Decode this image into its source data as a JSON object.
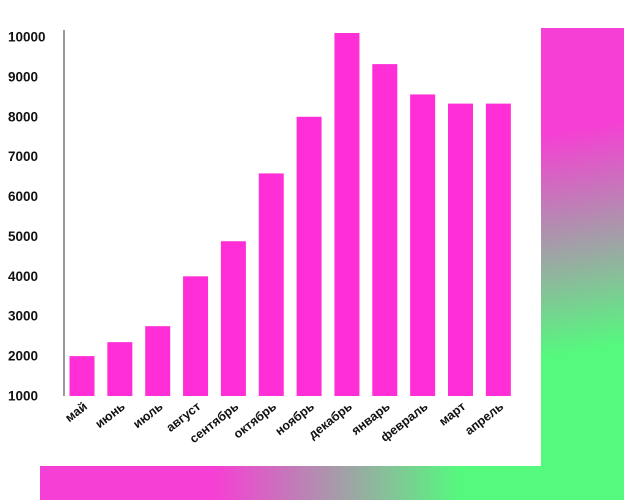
{
  "colors": {
    "bar": "#ff2ed6",
    "gradient_pink": "#f63fd4",
    "gradient_green": "#55f97e",
    "axis": "#333333"
  },
  "chart_data": {
    "type": "bar",
    "title": "",
    "xlabel": "",
    "ylabel": "",
    "categories": [
      "май",
      "июнь",
      "июль",
      "август",
      "сентябрь",
      "октябрь",
      "ноябрь",
      "декабрь",
      "январь",
      "февраль",
      "март",
      "апрель"
    ],
    "values": [
      2000,
      2350,
      2750,
      4000,
      4880,
      6580,
      8000,
      10100,
      9320,
      8560,
      8330,
      8330
    ],
    "ylim": [
      1000,
      10000
    ],
    "yticks": [
      "10000",
      "9000",
      "8000",
      "7000",
      "6000",
      "5000",
      "4000",
      "3000",
      "2000",
      "1000"
    ],
    "grid": false,
    "legend": "none"
  }
}
